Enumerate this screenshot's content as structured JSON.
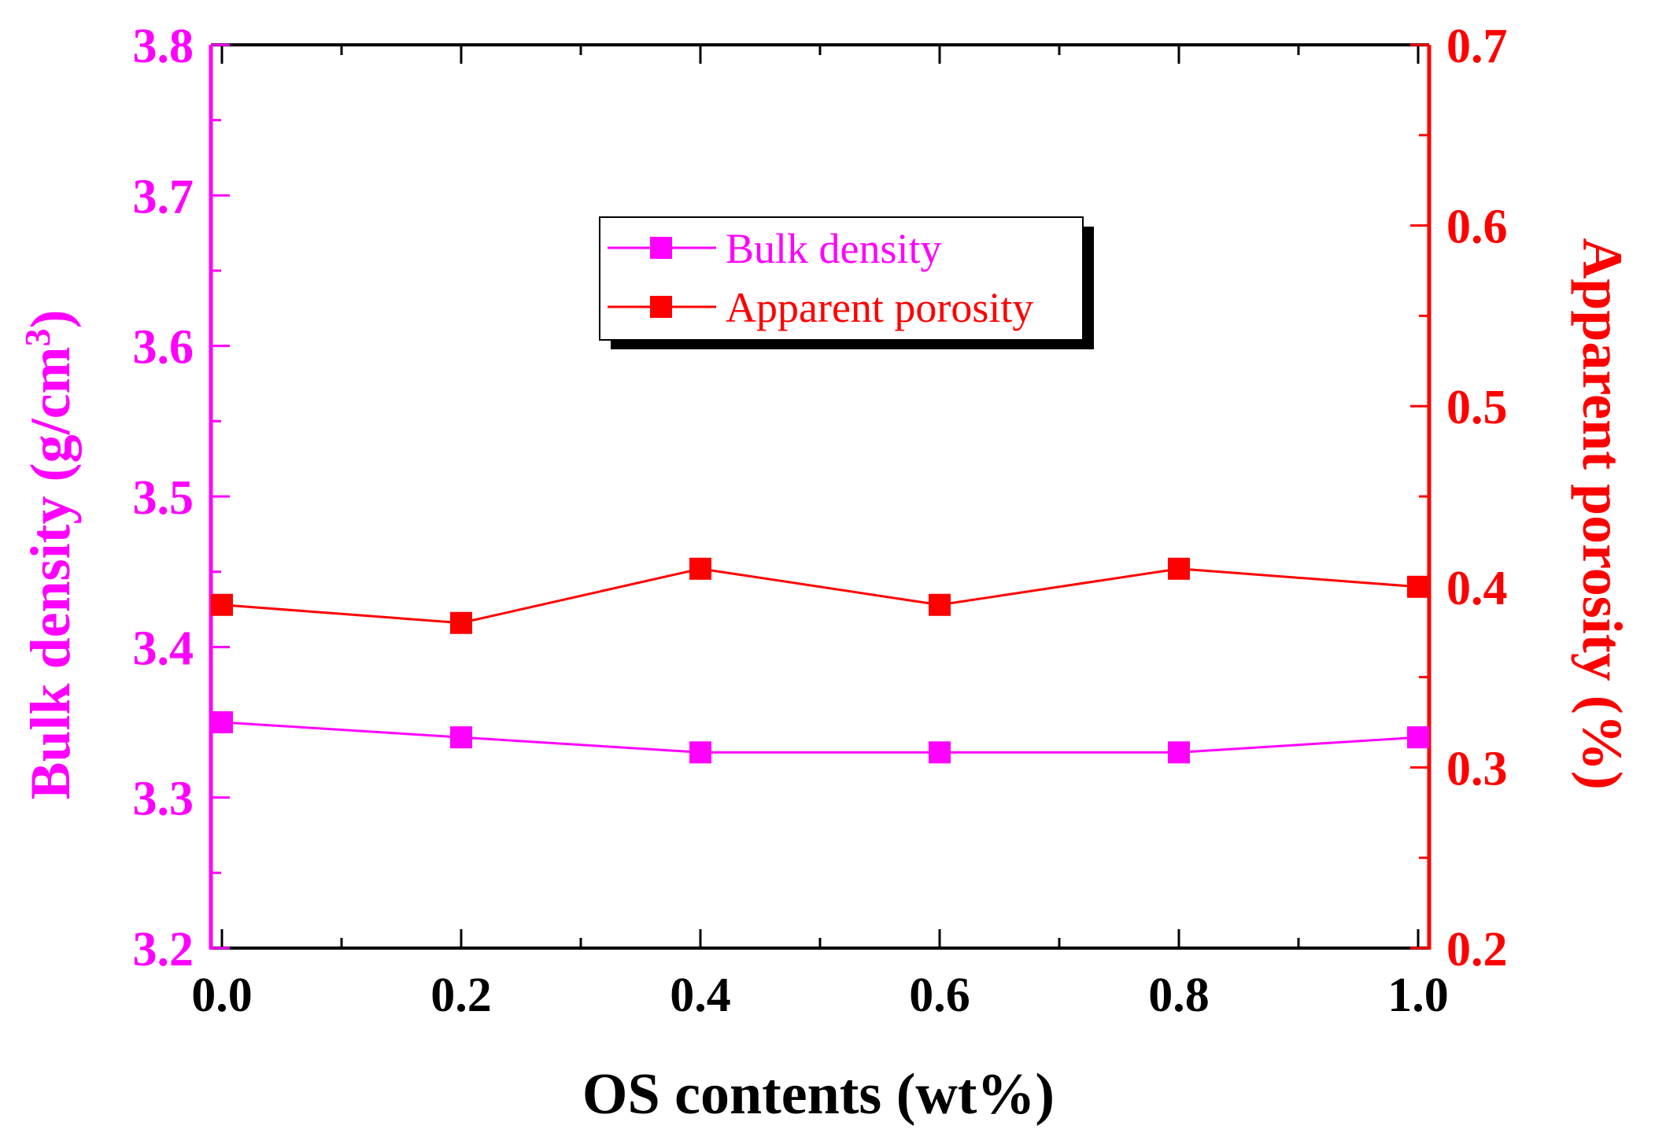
{
  "chart_data": {
    "type": "line",
    "title": "",
    "xlabel": "OS contents (wt%)",
    "ylabel_left": "Bulk density (g/cm",
    "ylabel_left_sup": "3",
    "ylabel_left_close": ")",
    "ylabel_right": "Apparent porosity (%)",
    "x": [
      0.0,
      0.2,
      0.4,
      0.6,
      0.8,
      1.0
    ],
    "x_tick_labels": [
      "0.0",
      "0.2",
      "0.4",
      "0.6",
      "0.8",
      "1.0"
    ],
    "xlim": [
      0.0,
      1.0
    ],
    "ylim_left": [
      3.2,
      3.8
    ],
    "ylim_right": [
      0.2,
      0.7
    ],
    "y_left_tick_labels": [
      "3.2",
      "3.3",
      "3.4",
      "3.5",
      "3.6",
      "3.7",
      "3.8"
    ],
    "y_right_tick_labels": [
      "0.2",
      "0.3",
      "0.4",
      "0.5",
      "0.6",
      "0.7"
    ],
    "series": [
      {
        "name": "Bulk density",
        "axis": "left",
        "color": "#ff00ff",
        "marker": "square",
        "values": [
          3.35,
          3.34,
          3.33,
          3.33,
          3.33,
          3.34
        ]
      },
      {
        "name": "Apparent porosity",
        "axis": "right",
        "color": "#ff0000",
        "marker": "square",
        "values": [
          0.39,
          0.38,
          0.41,
          0.39,
          0.41,
          0.4
        ]
      }
    ],
    "legend_position": "upper-center",
    "grid": false
  },
  "colors": {
    "left_axis": "#ff00ff",
    "right_axis": "#ff0000",
    "frame": "#000000",
    "background": "#ffffff"
  }
}
